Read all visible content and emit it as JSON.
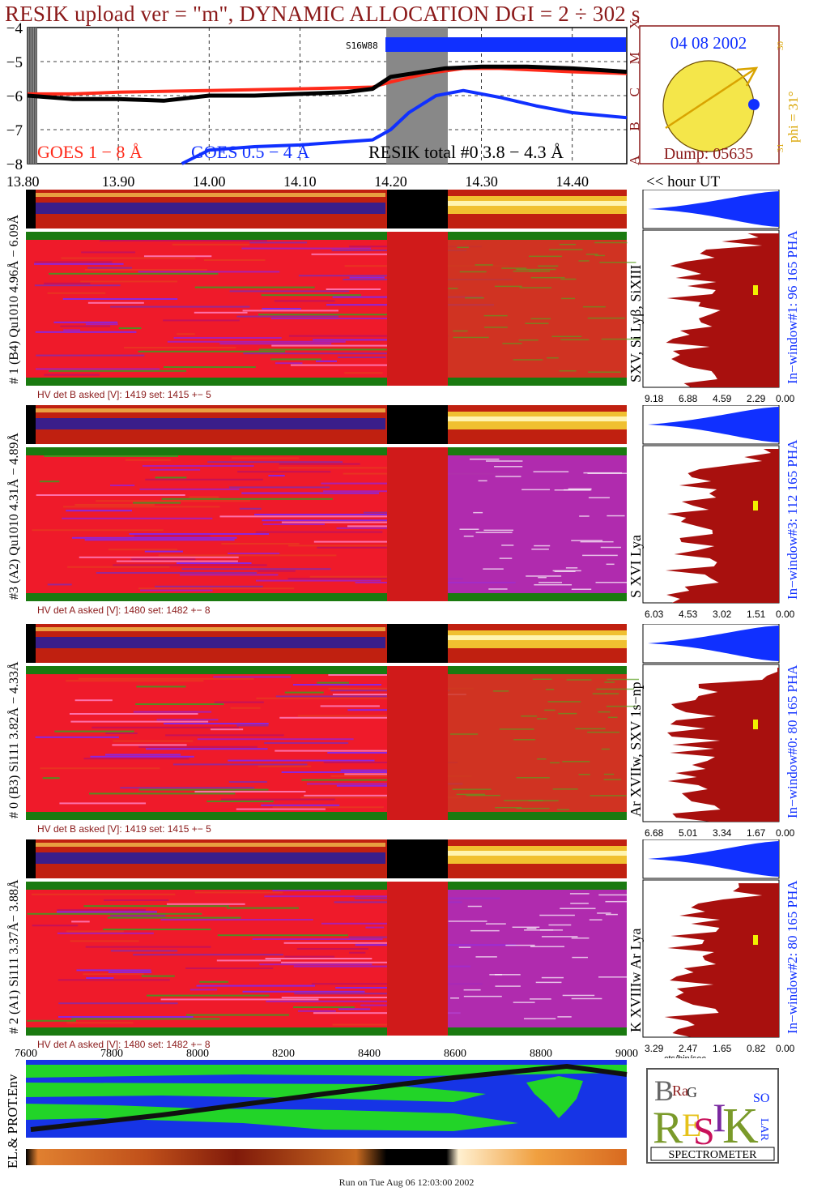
{
  "title": "RESIK upload ver = \"m\", DYNAMIC ALLOCATION  DGI =   2 ÷ 302 s",
  "goes": {
    "yticks": [
      "−4",
      "−5",
      "−6",
      "−7",
      "−8"
    ],
    "flare_classes": [
      "X",
      "M",
      "C",
      "B",
      "A"
    ],
    "legend": [
      "GOES 1 − 8 Å",
      "GOES 0.5 − 4 Å",
      "RESIK total #0  3.8 − 4.3 Å"
    ],
    "bar_label": "S16W88",
    "colors": {
      "goes_long": "#ff2a1a",
      "goes_short": "#1030ff",
      "resik": "#000000",
      "flare_marker": "#8b1a1a"
    }
  },
  "time_axis": {
    "ticks": [
      "13.80",
      "13.90",
      "14.00",
      "14.10",
      "14.20",
      "14.30",
      "14.40"
    ],
    "unit_label": "<< hour UT"
  },
  "sun_panel": {
    "date": "04 08 2002",
    "dump": "Dump: 05635",
    "phi": "phi = 31°",
    "ticks": [
      "30",
      "31"
    ],
    "colors": {
      "disk": "#f4e64a",
      "arrow": "#d9a400",
      "frame": "#8b1a1a",
      "text": "#1030ff",
      "phi": "#d9a400"
    }
  },
  "channels": [
    {
      "label": "# 1 (B4) Qu1010 4.96Å − 6.09Å",
      "lines": "SXV, Si Lyβ, SiXIII",
      "window": "In−window#1:  96 165  PHA",
      "hv": "HV det B asked [V]:  1419 set:  1415 +−    5",
      "pha_ticks": [
        "9.18",
        "6.88",
        "4.59",
        "2.29",
        "0.00"
      ]
    },
    {
      "label": "#3 (A2) Qu1010  4.31Å − 4.89Å",
      "lines": "S XVI Lya",
      "window": "In−window#3:  112 165  PHA",
      "hv": "HV det A asked [V]:  1480 set:  1482 +−    8",
      "pha_ticks": [
        "6.03",
        "4.53",
        "3.02",
        "1.51",
        "0.00"
      ]
    },
    {
      "label": "# 0 (B3) Si111  3.82Å − 4.33Å",
      "lines": "Ar XVIIw,  SXV 1s−np",
      "window": "In−window#0:   80 165  PHA",
      "hv": "HV det B asked [V]:  1419 set:  1415 +−    5",
      "pha_ticks": [
        "6.68",
        "5.01",
        "3.34",
        "1.67",
        "0.00"
      ]
    },
    {
      "label": "# 2 (A1) Si111  3.37Å−  3.88Å",
      "lines": "K XVIIIw  Ar Lya",
      "window": "In−window#2:   80 165  PHA",
      "hv": "HV det A asked [V]:  1480 set:  1482 +−    8",
      "pha_ticks": [
        "3.29",
        "2.47",
        "1.65",
        "0.82",
        "0.00"
      ],
      "pha_xlabel": "cts/bin/sec"
    }
  ],
  "orbit": {
    "ticks": [
      "7600",
      "7800",
      "8000",
      "8200",
      "8400",
      "8600",
      "8800",
      "9000"
    ],
    "ylabel": "EL.& PROT.Env"
  },
  "logo": {
    "letters": [
      "B",
      "R",
      "E",
      "S",
      "I",
      "K",
      "Ra",
      "G",
      "SO",
      "LAR"
    ],
    "caption": "SPECTROMETER"
  },
  "footer": "Run on Tue Aug 06 12:03:00 2002",
  "chart_data": {
    "type": "line",
    "xlabel": "<< hour UT",
    "xlim": [
      13.8,
      14.46
    ],
    "ylim": [
      -8,
      -4
    ],
    "yscale": "log10 flux",
    "series": [
      {
        "name": "GOES 1 − 8 Å",
        "x": [
          13.8,
          13.85,
          13.9,
          14.0,
          14.1,
          14.18,
          14.2,
          14.24,
          14.28,
          14.32,
          14.36,
          14.4,
          14.46
        ],
        "values": [
          -5.95,
          -5.95,
          -5.9,
          -5.85,
          -5.8,
          -5.75,
          -5.6,
          -5.35,
          -5.2,
          -5.2,
          -5.25,
          -5.3,
          -5.35
        ]
      },
      {
        "name": "GOES 0.5 − 4 Å",
        "x": [
          13.97,
          14.0,
          14.05,
          14.1,
          14.18,
          14.2,
          14.22,
          14.25,
          14.28,
          14.32,
          14.36,
          14.4,
          14.46
        ],
        "values": [
          -8.0,
          -7.6,
          -7.5,
          -7.45,
          -7.3,
          -7.0,
          -6.5,
          -6.0,
          -5.85,
          -6.05,
          -6.3,
          -6.5,
          -6.65
        ]
      },
      {
        "name": "RESIK total #0  3.8 − 4.3 Å",
        "x": [
          13.8,
          13.85,
          13.9,
          13.95,
          14.0,
          14.05,
          14.1,
          14.15,
          14.18,
          14.2,
          14.26,
          14.3,
          14.35,
          14.4,
          14.46
        ],
        "values": [
          -6.0,
          -6.1,
          -6.1,
          -6.15,
          -6.0,
          -6.0,
          -5.95,
          -5.9,
          -5.8,
          -5.45,
          -5.2,
          -5.15,
          -5.15,
          -5.2,
          -5.3
        ]
      }
    ]
  }
}
